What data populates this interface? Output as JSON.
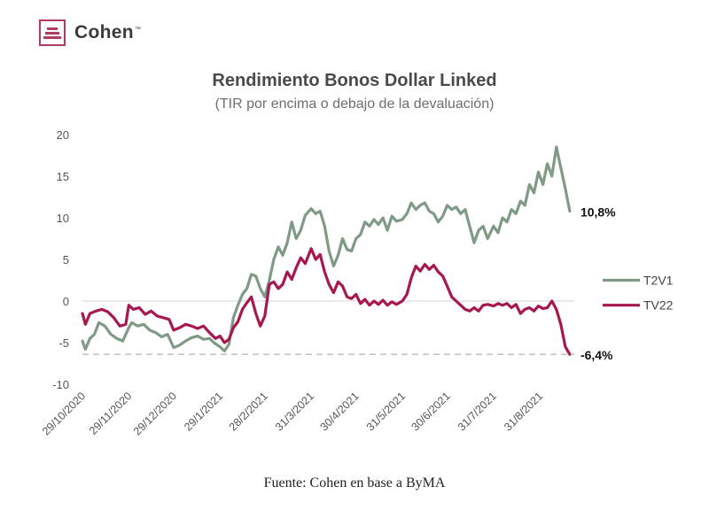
{
  "brand": {
    "name": "Cohen",
    "tm": "™",
    "color": "#b23a5e"
  },
  "source_note": "Fuente: Cohen en base a ByMA",
  "chart_data": {
    "type": "line",
    "title": "Rendimiento Bonos Dollar Linked",
    "subtitle": "(TIR por encima o debajo de la devaluación)",
    "xlabel": "",
    "ylabel": "",
    "ylim": [
      -10,
      20
    ],
    "yticks": [
      20,
      15,
      10,
      5,
      0,
      -5,
      -10
    ],
    "ytick_labels": [
      "20",
      "15",
      "10",
      "5",
      "0",
      "-5",
      "-10"
    ],
    "xlim": [
      "2020-10-29",
      "2021-09-23"
    ],
    "xticks": [
      "2020-10-29",
      "2020-11-29",
      "2020-12-29",
      "2021-01-29",
      "2021-02-28",
      "2021-03-31",
      "2021-04-30",
      "2021-05-31",
      "2021-06-30",
      "2021-07-31",
      "2021-08-31"
    ],
    "xtick_labels": [
      "29/10/2020",
      "29/11/2020",
      "29/12/2020",
      "29/1/2021",
      "28/2/2021",
      "31/3/2021",
      "30/4/2021",
      "31/5/2021",
      "30/6/2021",
      "31/7/2021",
      "31/8/2021"
    ],
    "reference_lines": [
      {
        "y": 0,
        "style": "solid",
        "color": "#e2e2e2"
      },
      {
        "y": -6.4,
        "style": "dashed",
        "color": "#c4c4c4"
      }
    ],
    "legend_position": "right",
    "series": [
      {
        "name": "T2V1",
        "color": "#7f9a85",
        "end_label": "10,8%",
        "points": [
          [
            "2020-10-29",
            -4.8
          ],
          [
            "2020-10-31",
            -5.8
          ],
          [
            "2020-11-03",
            -4.5
          ],
          [
            "2020-11-06",
            -4.0
          ],
          [
            "2020-11-09",
            -2.6
          ],
          [
            "2020-11-13",
            -3.0
          ],
          [
            "2020-11-17",
            -4.0
          ],
          [
            "2020-11-21",
            -4.5
          ],
          [
            "2020-11-25",
            -4.8
          ],
          [
            "2020-11-29",
            -3.2
          ],
          [
            "2020-12-01",
            -2.6
          ],
          [
            "2020-12-05",
            -3.0
          ],
          [
            "2020-12-09",
            -2.8
          ],
          [
            "2020-12-13",
            -3.5
          ],
          [
            "2020-12-17",
            -3.8
          ],
          [
            "2020-12-21",
            -4.3
          ],
          [
            "2020-12-25",
            -4.0
          ],
          [
            "2020-12-29",
            -5.6
          ],
          [
            "2021-01-02",
            -5.3
          ],
          [
            "2021-01-06",
            -4.8
          ],
          [
            "2021-01-10",
            -4.4
          ],
          [
            "2021-01-14",
            -4.2
          ],
          [
            "2021-01-18",
            -4.6
          ],
          [
            "2021-01-22",
            -4.5
          ],
          [
            "2021-01-25",
            -5.0
          ],
          [
            "2021-01-29",
            -5.5
          ],
          [
            "2021-02-01",
            -6.0
          ],
          [
            "2021-02-04",
            -5.2
          ],
          [
            "2021-02-07",
            -2.0
          ],
          [
            "2021-02-10",
            -0.5
          ],
          [
            "2021-02-13",
            0.8
          ],
          [
            "2021-02-16",
            1.5
          ],
          [
            "2021-02-19",
            3.2
          ],
          [
            "2021-02-22",
            3.0
          ],
          [
            "2021-02-25",
            1.5
          ],
          [
            "2021-02-28",
            0.5
          ],
          [
            "2021-03-03",
            2.5
          ],
          [
            "2021-03-06",
            5.0
          ],
          [
            "2021-03-09",
            6.5
          ],
          [
            "2021-03-12",
            5.5
          ],
          [
            "2021-03-15",
            7.0
          ],
          [
            "2021-03-18",
            9.5
          ],
          [
            "2021-03-21",
            7.5
          ],
          [
            "2021-03-24",
            8.5
          ],
          [
            "2021-03-27",
            10.3
          ],
          [
            "2021-03-31",
            11.1
          ],
          [
            "2021-04-03",
            10.5
          ],
          [
            "2021-04-06",
            10.8
          ],
          [
            "2021-04-09",
            9.0
          ],
          [
            "2021-04-12",
            6.0
          ],
          [
            "2021-04-15",
            4.2
          ],
          [
            "2021-04-18",
            5.5
          ],
          [
            "2021-04-21",
            7.5
          ],
          [
            "2021-04-24",
            6.2
          ],
          [
            "2021-04-27",
            6.0
          ],
          [
            "2021-04-30",
            7.5
          ],
          [
            "2021-05-03",
            8.0
          ],
          [
            "2021-05-06",
            9.5
          ],
          [
            "2021-05-09",
            9.0
          ],
          [
            "2021-05-12",
            9.8
          ],
          [
            "2021-05-15",
            9.2
          ],
          [
            "2021-05-18",
            10.0
          ],
          [
            "2021-05-21",
            8.5
          ],
          [
            "2021-05-24",
            10.2
          ],
          [
            "2021-05-27",
            9.6
          ],
          [
            "2021-05-31",
            9.8
          ],
          [
            "2021-06-03",
            10.5
          ],
          [
            "2021-06-06",
            11.8
          ],
          [
            "2021-06-09",
            11.0
          ],
          [
            "2021-06-12",
            11.5
          ],
          [
            "2021-06-15",
            11.8
          ],
          [
            "2021-06-18",
            10.8
          ],
          [
            "2021-06-21",
            10.5
          ],
          [
            "2021-06-24",
            9.5
          ],
          [
            "2021-06-27",
            10.2
          ],
          [
            "2021-06-30",
            11.5
          ],
          [
            "2021-07-03",
            11.0
          ],
          [
            "2021-07-06",
            11.3
          ],
          [
            "2021-07-09",
            10.5
          ],
          [
            "2021-07-12",
            11.0
          ],
          [
            "2021-07-15",
            9.0
          ],
          [
            "2021-07-18",
            7.0
          ],
          [
            "2021-07-21",
            8.5
          ],
          [
            "2021-07-24",
            9.0
          ],
          [
            "2021-07-27",
            7.5
          ],
          [
            "2021-07-31",
            9.0
          ],
          [
            "2021-08-03",
            8.2
          ],
          [
            "2021-08-06",
            10.0
          ],
          [
            "2021-08-09",
            9.5
          ],
          [
            "2021-08-12",
            11.0
          ],
          [
            "2021-08-15",
            10.5
          ],
          [
            "2021-08-18",
            12.0
          ],
          [
            "2021-08-21",
            11.5
          ],
          [
            "2021-08-24",
            14.0
          ],
          [
            "2021-08-27",
            13.0
          ],
          [
            "2021-08-30",
            15.5
          ],
          [
            "2021-09-02",
            14.0
          ],
          [
            "2021-09-05",
            16.5
          ],
          [
            "2021-09-08",
            15.0
          ],
          [
            "2021-09-11",
            18.5
          ],
          [
            "2021-09-14",
            16.0
          ],
          [
            "2021-09-17",
            13.5
          ],
          [
            "2021-09-20",
            10.8
          ]
        ]
      },
      {
        "name": "TV22",
        "color": "#a6184f",
        "end_label": "-6,4%",
        "points": [
          [
            "2020-10-29",
            -1.5
          ],
          [
            "2020-10-31",
            -2.8
          ],
          [
            "2020-11-03",
            -1.5
          ],
          [
            "2020-11-07",
            -1.2
          ],
          [
            "2020-11-11",
            -1.0
          ],
          [
            "2020-11-15",
            -1.3
          ],
          [
            "2020-11-19",
            -2.0
          ],
          [
            "2020-11-23",
            -3.0
          ],
          [
            "2020-11-27",
            -2.8
          ],
          [
            "2020-11-29",
            -0.5
          ],
          [
            "2020-12-02",
            -1.0
          ],
          [
            "2020-12-06",
            -0.8
          ],
          [
            "2020-12-10",
            -1.6
          ],
          [
            "2020-12-14",
            -1.2
          ],
          [
            "2020-12-18",
            -1.8
          ],
          [
            "2020-12-22",
            -2.0
          ],
          [
            "2020-12-26",
            -2.2
          ],
          [
            "2020-12-29",
            -3.5
          ],
          [
            "2021-01-02",
            -3.2
          ],
          [
            "2021-01-06",
            -2.8
          ],
          [
            "2021-01-10",
            -3.0
          ],
          [
            "2021-01-14",
            -3.3
          ],
          [
            "2021-01-18",
            -3.0
          ],
          [
            "2021-01-22",
            -3.8
          ],
          [
            "2021-01-26",
            -4.5
          ],
          [
            "2021-01-29",
            -4.2
          ],
          [
            "2021-02-01",
            -5.0
          ],
          [
            "2021-02-04",
            -4.6
          ],
          [
            "2021-02-07",
            -3.2
          ],
          [
            "2021-02-10",
            -2.5
          ],
          [
            "2021-02-13",
            -1.0
          ],
          [
            "2021-02-16",
            -0.2
          ],
          [
            "2021-02-19",
            0.5
          ],
          [
            "2021-02-22",
            -1.5
          ],
          [
            "2021-02-25",
            -3.0
          ],
          [
            "2021-02-28",
            -1.8
          ],
          [
            "2021-03-03",
            2.0
          ],
          [
            "2021-03-06",
            2.3
          ],
          [
            "2021-03-09",
            1.5
          ],
          [
            "2021-03-12",
            2.0
          ],
          [
            "2021-03-15",
            3.5
          ],
          [
            "2021-03-18",
            2.6
          ],
          [
            "2021-03-21",
            4.0
          ],
          [
            "2021-03-24",
            5.2
          ],
          [
            "2021-03-27",
            4.5
          ],
          [
            "2021-03-31",
            6.3
          ],
          [
            "2021-04-03",
            5.0
          ],
          [
            "2021-04-06",
            5.6
          ],
          [
            "2021-04-09",
            3.5
          ],
          [
            "2021-04-12",
            2.0
          ],
          [
            "2021-04-15",
            1.0
          ],
          [
            "2021-04-18",
            2.3
          ],
          [
            "2021-04-21",
            1.8
          ],
          [
            "2021-04-24",
            0.5
          ],
          [
            "2021-04-27",
            0.3
          ],
          [
            "2021-04-30",
            0.8
          ],
          [
            "2021-05-03",
            -0.3
          ],
          [
            "2021-05-06",
            0.2
          ],
          [
            "2021-05-09",
            -0.5
          ],
          [
            "2021-05-12",
            0.0
          ],
          [
            "2021-05-15",
            -0.4
          ],
          [
            "2021-05-18",
            0.1
          ],
          [
            "2021-05-21",
            -0.5
          ],
          [
            "2021-05-24",
            -0.1
          ],
          [
            "2021-05-27",
            -0.4
          ],
          [
            "2021-05-31",
            0.0
          ],
          [
            "2021-06-03",
            0.8
          ],
          [
            "2021-06-06",
            2.8
          ],
          [
            "2021-06-09",
            4.2
          ],
          [
            "2021-06-12",
            3.6
          ],
          [
            "2021-06-15",
            4.4
          ],
          [
            "2021-06-18",
            3.8
          ],
          [
            "2021-06-21",
            4.3
          ],
          [
            "2021-06-24",
            3.5
          ],
          [
            "2021-06-27",
            3.0
          ],
          [
            "2021-06-30",
            1.8
          ],
          [
            "2021-07-03",
            0.5
          ],
          [
            "2021-07-06",
            0.0
          ],
          [
            "2021-07-09",
            -0.5
          ],
          [
            "2021-07-12",
            -1.0
          ],
          [
            "2021-07-15",
            -1.2
          ],
          [
            "2021-07-18",
            -0.8
          ],
          [
            "2021-07-21",
            -1.2
          ],
          [
            "2021-07-24",
            -0.5
          ],
          [
            "2021-07-27",
            -0.4
          ],
          [
            "2021-07-31",
            -0.6
          ],
          [
            "2021-08-03",
            -0.3
          ],
          [
            "2021-08-06",
            -0.5
          ],
          [
            "2021-08-09",
            -0.3
          ],
          [
            "2021-08-12",
            -0.8
          ],
          [
            "2021-08-15",
            -0.4
          ],
          [
            "2021-08-18",
            -1.5
          ],
          [
            "2021-08-21",
            -1.0
          ],
          [
            "2021-08-24",
            -0.8
          ],
          [
            "2021-08-27",
            -1.2
          ],
          [
            "2021-08-30",
            -0.6
          ],
          [
            "2021-09-02",
            -0.9
          ],
          [
            "2021-09-05",
            -0.8
          ],
          [
            "2021-09-08",
            0.0
          ],
          [
            "2021-09-11",
            -1.0
          ],
          [
            "2021-09-14",
            -2.8
          ],
          [
            "2021-09-17",
            -5.5
          ],
          [
            "2021-09-20",
            -6.4
          ]
        ]
      }
    ]
  }
}
